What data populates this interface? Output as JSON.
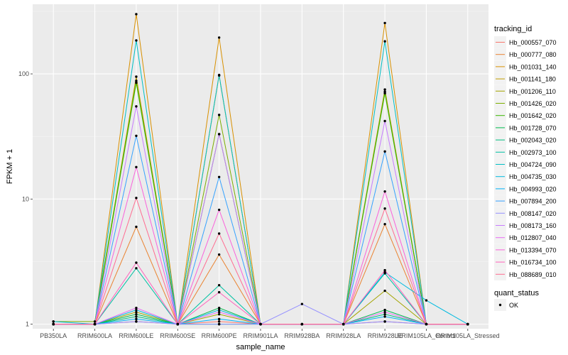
{
  "chart_data": {
    "type": "line",
    "xlabel": "sample_name",
    "ylabel": "FPKM + 1",
    "y_scale": "log10",
    "ylim": [
      0.92,
      360
    ],
    "y_ticks": [
      {
        "value": 1,
        "label": "1"
      },
      {
        "value": 10,
        "label": "10"
      },
      {
        "value": 100,
        "label": "100"
      }
    ],
    "grid": true,
    "legend_position": "right",
    "legend_title": "tracking_id",
    "legend2_title": "quant_status",
    "legend2_items": [
      "OK"
    ],
    "categories": [
      "PB350LA",
      "RRIM600LA",
      "RRIM600LE",
      "RRIM600SE",
      "RRIM600PE",
      "RRIM901LA",
      "RRIM928BA",
      "RRIM928LA",
      "RRIM928LE",
      "RRIM105LA_Control",
      "RRIM105LA_Stressed"
    ],
    "series": [
      {
        "name": "Hb_000557_070",
        "color": "#F8766D",
        "values": [
          1.0,
          1.0,
          1.05,
          1.0,
          1.05,
          1.0,
          1.0,
          1.0,
          1.05,
          1.0,
          1.0
        ]
      },
      {
        "name": "Hb_000777_080",
        "color": "#EA8331",
        "values": [
          1.0,
          1.0,
          6.0,
          1.0,
          3.6,
          1.0,
          1.0,
          1.0,
          6.3,
          1.0,
          1.0
        ]
      },
      {
        "name": "Hb_001031_140",
        "color": "#D89000",
        "values": [
          1.0,
          1.0,
          300.0,
          1.0,
          195.0,
          1.0,
          1.0,
          1.0,
          255.0,
          1.0,
          1.0
        ]
      },
      {
        "name": "Hb_001141_180",
        "color": "#C09B00",
        "values": [
          1.0,
          1.0,
          95.0,
          1.0,
          97.0,
          1.0,
          1.0,
          1.0,
          75.0,
          1.0,
          1.0
        ]
      },
      {
        "name": "Hb_001206_110",
        "color": "#A3A500",
        "values": [
          1.0,
          1.0,
          1.25,
          1.0,
          1.2,
          1.0,
          1.0,
          1.0,
          1.85,
          1.0,
          1.0
        ]
      },
      {
        "name": "Hb_001426_020",
        "color": "#7CAE00",
        "values": [
          1.05,
          1.05,
          88.0,
          1.0,
          47.0,
          1.0,
          1.0,
          1.0,
          72.0,
          1.0,
          1.0
        ]
      },
      {
        "name": "Hb_001642_020",
        "color": "#39B600",
        "values": [
          1.0,
          1.0,
          85.0,
          1.0,
          33.0,
          1.0,
          1.0,
          1.0,
          70.0,
          1.0,
          1.0
        ]
      },
      {
        "name": "Hb_001728_070",
        "color": "#00BB4E",
        "values": [
          1.0,
          1.0,
          1.2,
          1.0,
          1.35,
          1.0,
          1.0,
          1.0,
          1.3,
          1.0,
          1.0
        ]
      },
      {
        "name": "Hb_002043_020",
        "color": "#00BF7D",
        "values": [
          1.0,
          1.0,
          1.15,
          1.0,
          1.0,
          1.0,
          1.0,
          1.0,
          1.2,
          1.0,
          1.0
        ]
      },
      {
        "name": "Hb_002973_100",
        "color": "#00C1A3",
        "values": [
          1.0,
          1.0,
          2.8,
          1.0,
          2.05,
          1.0,
          1.0,
          1.0,
          2.55,
          1.0,
          1.0
        ]
      },
      {
        "name": "Hb_004724_090",
        "color": "#00BFC4",
        "values": [
          1.0,
          1.0,
          185.0,
          1.0,
          98.0,
          1.0,
          1.0,
          1.0,
          182.0,
          1.0,
          1.0
        ]
      },
      {
        "name": "Hb_004735_030",
        "color": "#00BAE0",
        "values": [
          1.05,
          1.0,
          1.3,
          1.0,
          1.3,
          1.0,
          1.0,
          1.0,
          2.6,
          1.55,
          1.0
        ]
      },
      {
        "name": "Hb_004993_020",
        "color": "#00B0F6",
        "values": [
          1.0,
          1.0,
          1.1,
          1.0,
          1.1,
          1.0,
          1.0,
          1.0,
          1.15,
          1.0,
          1.0
        ]
      },
      {
        "name": "Hb_007894_200",
        "color": "#35A2FF",
        "values": [
          1.0,
          1.0,
          32.0,
          1.0,
          15.0,
          1.0,
          1.0,
          1.0,
          24.0,
          1.0,
          1.0
        ]
      },
      {
        "name": "Hb_008147_020",
        "color": "#9590FF",
        "values": [
          1.0,
          1.0,
          1.05,
          1.0,
          1.0,
          1.0,
          1.45,
          1.0,
          1.05,
          1.0,
          1.0
        ]
      },
      {
        "name": "Hb_008173_160",
        "color": "#C77CFF",
        "values": [
          1.0,
          1.0,
          55.0,
          1.0,
          33.0,
          1.0,
          1.0,
          1.0,
          42.0,
          1.0,
          1.0
        ]
      },
      {
        "name": "Hb_012807_040",
        "color": "#E76BF3",
        "values": [
          1.0,
          1.0,
          1.35,
          1.0,
          1.25,
          1.0,
          1.0,
          1.0,
          1.25,
          1.0,
          1.0
        ]
      },
      {
        "name": "Hb_013394_070",
        "color": "#FA62DB",
        "values": [
          1.0,
          1.0,
          18.0,
          1.0,
          8.2,
          1.0,
          1.0,
          1.0,
          11.5,
          1.0,
          1.0
        ]
      },
      {
        "name": "Hb_016734_100",
        "color": "#FF62BC",
        "values": [
          1.0,
          1.0,
          3.1,
          1.0,
          1.8,
          1.0,
          1.0,
          1.0,
          2.7,
          1.0,
          1.0
        ]
      },
      {
        "name": "Hb_088689_010",
        "color": "#FF6C91",
        "values": [
          1.0,
          1.0,
          10.2,
          1.0,
          5.3,
          1.0,
          1.0,
          1.0,
          8.4,
          1.0,
          1.0
        ]
      }
    ]
  }
}
